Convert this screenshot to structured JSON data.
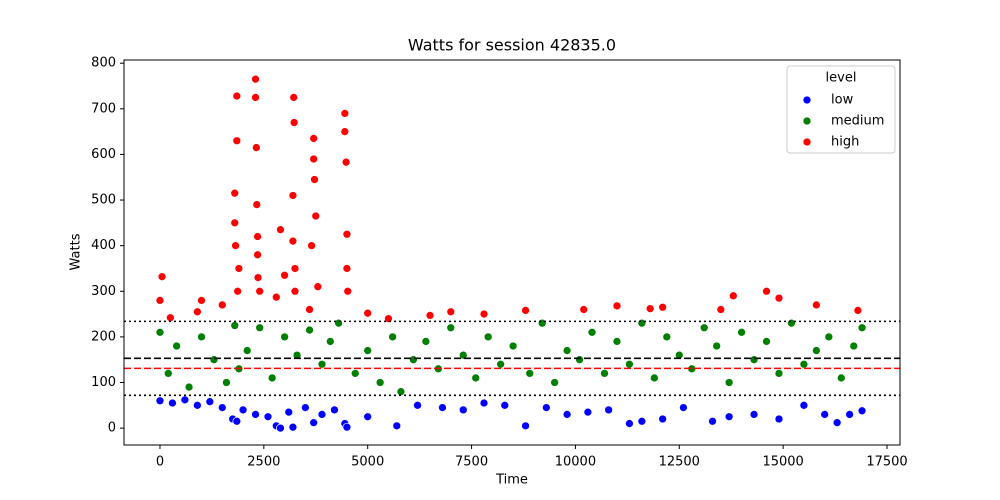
{
  "chart_data": {
    "type": "scatter",
    "title": "Watts for session 42835.0",
    "x_label": "Time",
    "y_label": "Watts",
    "xlim": [
      -866,
      17813
    ],
    "ylim": [
      -37,
      807
    ],
    "xticks": [
      0,
      2500,
      5000,
      7500,
      10000,
      12500,
      15000,
      17500
    ],
    "yticks": [
      0,
      100,
      200,
      300,
      400,
      500,
      600,
      700,
      800
    ],
    "legend_title": "level",
    "legend_position": "upper right",
    "series": [
      {
        "name": "low",
        "color": "#0000ff",
        "x": [
          0,
          300,
          600,
          900,
          1200,
          1500,
          1750,
          1850,
          2000,
          2300,
          2600,
          2800,
          2900,
          3100,
          3200,
          3500,
          3700,
          3900,
          4200,
          4450,
          4500,
          5000,
          5700,
          6200,
          6800,
          7300,
          7800,
          8300,
          8800,
          9300,
          9800,
          10300,
          10800,
          11300,
          11600,
          12100,
          12600,
          13300,
          13700,
          14300,
          14900,
          15500,
          16000,
          16300,
          16600,
          16900
        ],
        "values": [
          60,
          55,
          62,
          50,
          58,
          45,
          20,
          15,
          40,
          30,
          25,
          5,
          0,
          35,
          2,
          45,
          12,
          30,
          40,
          10,
          2,
          25,
          5,
          50,
          45,
          40,
          55,
          50,
          5,
          45,
          30,
          35,
          40,
          10,
          15,
          20,
          45,
          15,
          25,
          30,
          20,
          50,
          30,
          12,
          30,
          38
        ]
      },
      {
        "name": "medium",
        "color": "#008000",
        "x": [
          0,
          200,
          400,
          700,
          1000,
          1300,
          1600,
          1800,
          1900,
          2100,
          2400,
          2700,
          3000,
          3300,
          3600,
          3900,
          4100,
          4300,
          4700,
          5000,
          5300,
          5600,
          5800,
          6100,
          6400,
          6700,
          7000,
          7300,
          7600,
          7900,
          8200,
          8500,
          8900,
          9200,
          9500,
          9800,
          10100,
          10400,
          10700,
          11000,
          11300,
          11600,
          11900,
          12200,
          12500,
          12800,
          13100,
          13400,
          13700,
          14000,
          14300,
          14600,
          14900,
          15200,
          15500,
          15800,
          16100,
          16400,
          16700,
          16900
        ],
        "values": [
          210,
          120,
          180,
          90,
          200,
          150,
          100,
          225,
          130,
          170,
          220,
          110,
          200,
          160,
          215,
          140,
          190,
          230,
          120,
          170,
          100,
          200,
          80,
          150,
          190,
          130,
          220,
          160,
          110,
          200,
          140,
          180,
          120,
          230,
          100,
          170,
          150,
          210,
          120,
          190,
          140,
          230,
          110,
          200,
          160,
          130,
          220,
          180,
          100,
          210,
          150,
          190,
          120,
          230,
          140,
          170,
          200,
          110,
          180,
          220
        ]
      },
      {
        "name": "high",
        "color": "#ff0000",
        "x": [
          0,
          50,
          250,
          900,
          1000,
          1500,
          1800,
          1800,
          1820,
          1850,
          1850,
          1870,
          1900,
          2300,
          2300,
          2320,
          2330,
          2350,
          2350,
          2360,
          2400,
          2800,
          2900,
          3000,
          3200,
          3200,
          3220,
          3230,
          3250,
          3250,
          3600,
          3650,
          3700,
          3700,
          3720,
          3750,
          3800,
          4450,
          4450,
          4480,
          4500,
          4500,
          4520,
          5000,
          5500,
          6500,
          7000,
          7800,
          8800,
          10200,
          11000,
          11800,
          12100,
          13500,
          13800,
          14600,
          14900,
          15800,
          16800
        ],
        "values": [
          280,
          332,
          242,
          255,
          280,
          270,
          515,
          450,
          400,
          728,
          630,
          300,
          350,
          765,
          725,
          615,
          490,
          420,
          380,
          330,
          300,
          287,
          435,
          335,
          510,
          410,
          725,
          670,
          350,
          300,
          260,
          400,
          635,
          590,
          545,
          465,
          310,
          690,
          650,
          583,
          425,
          350,
          300,
          252,
          240,
          247,
          255,
          250,
          258,
          260,
          268,
          262,
          265,
          260,
          290,
          300,
          285,
          270,
          258
        ]
      }
    ],
    "hlines": [
      {
        "value": 234,
        "color": "#000000",
        "style": "dotted"
      },
      {
        "value": 153,
        "color": "#000000",
        "style": "dashed"
      },
      {
        "value": 131,
        "color": "#ff0000",
        "style": "dashed"
      },
      {
        "value": 72,
        "color": "#000000",
        "style": "dotted"
      }
    ]
  }
}
